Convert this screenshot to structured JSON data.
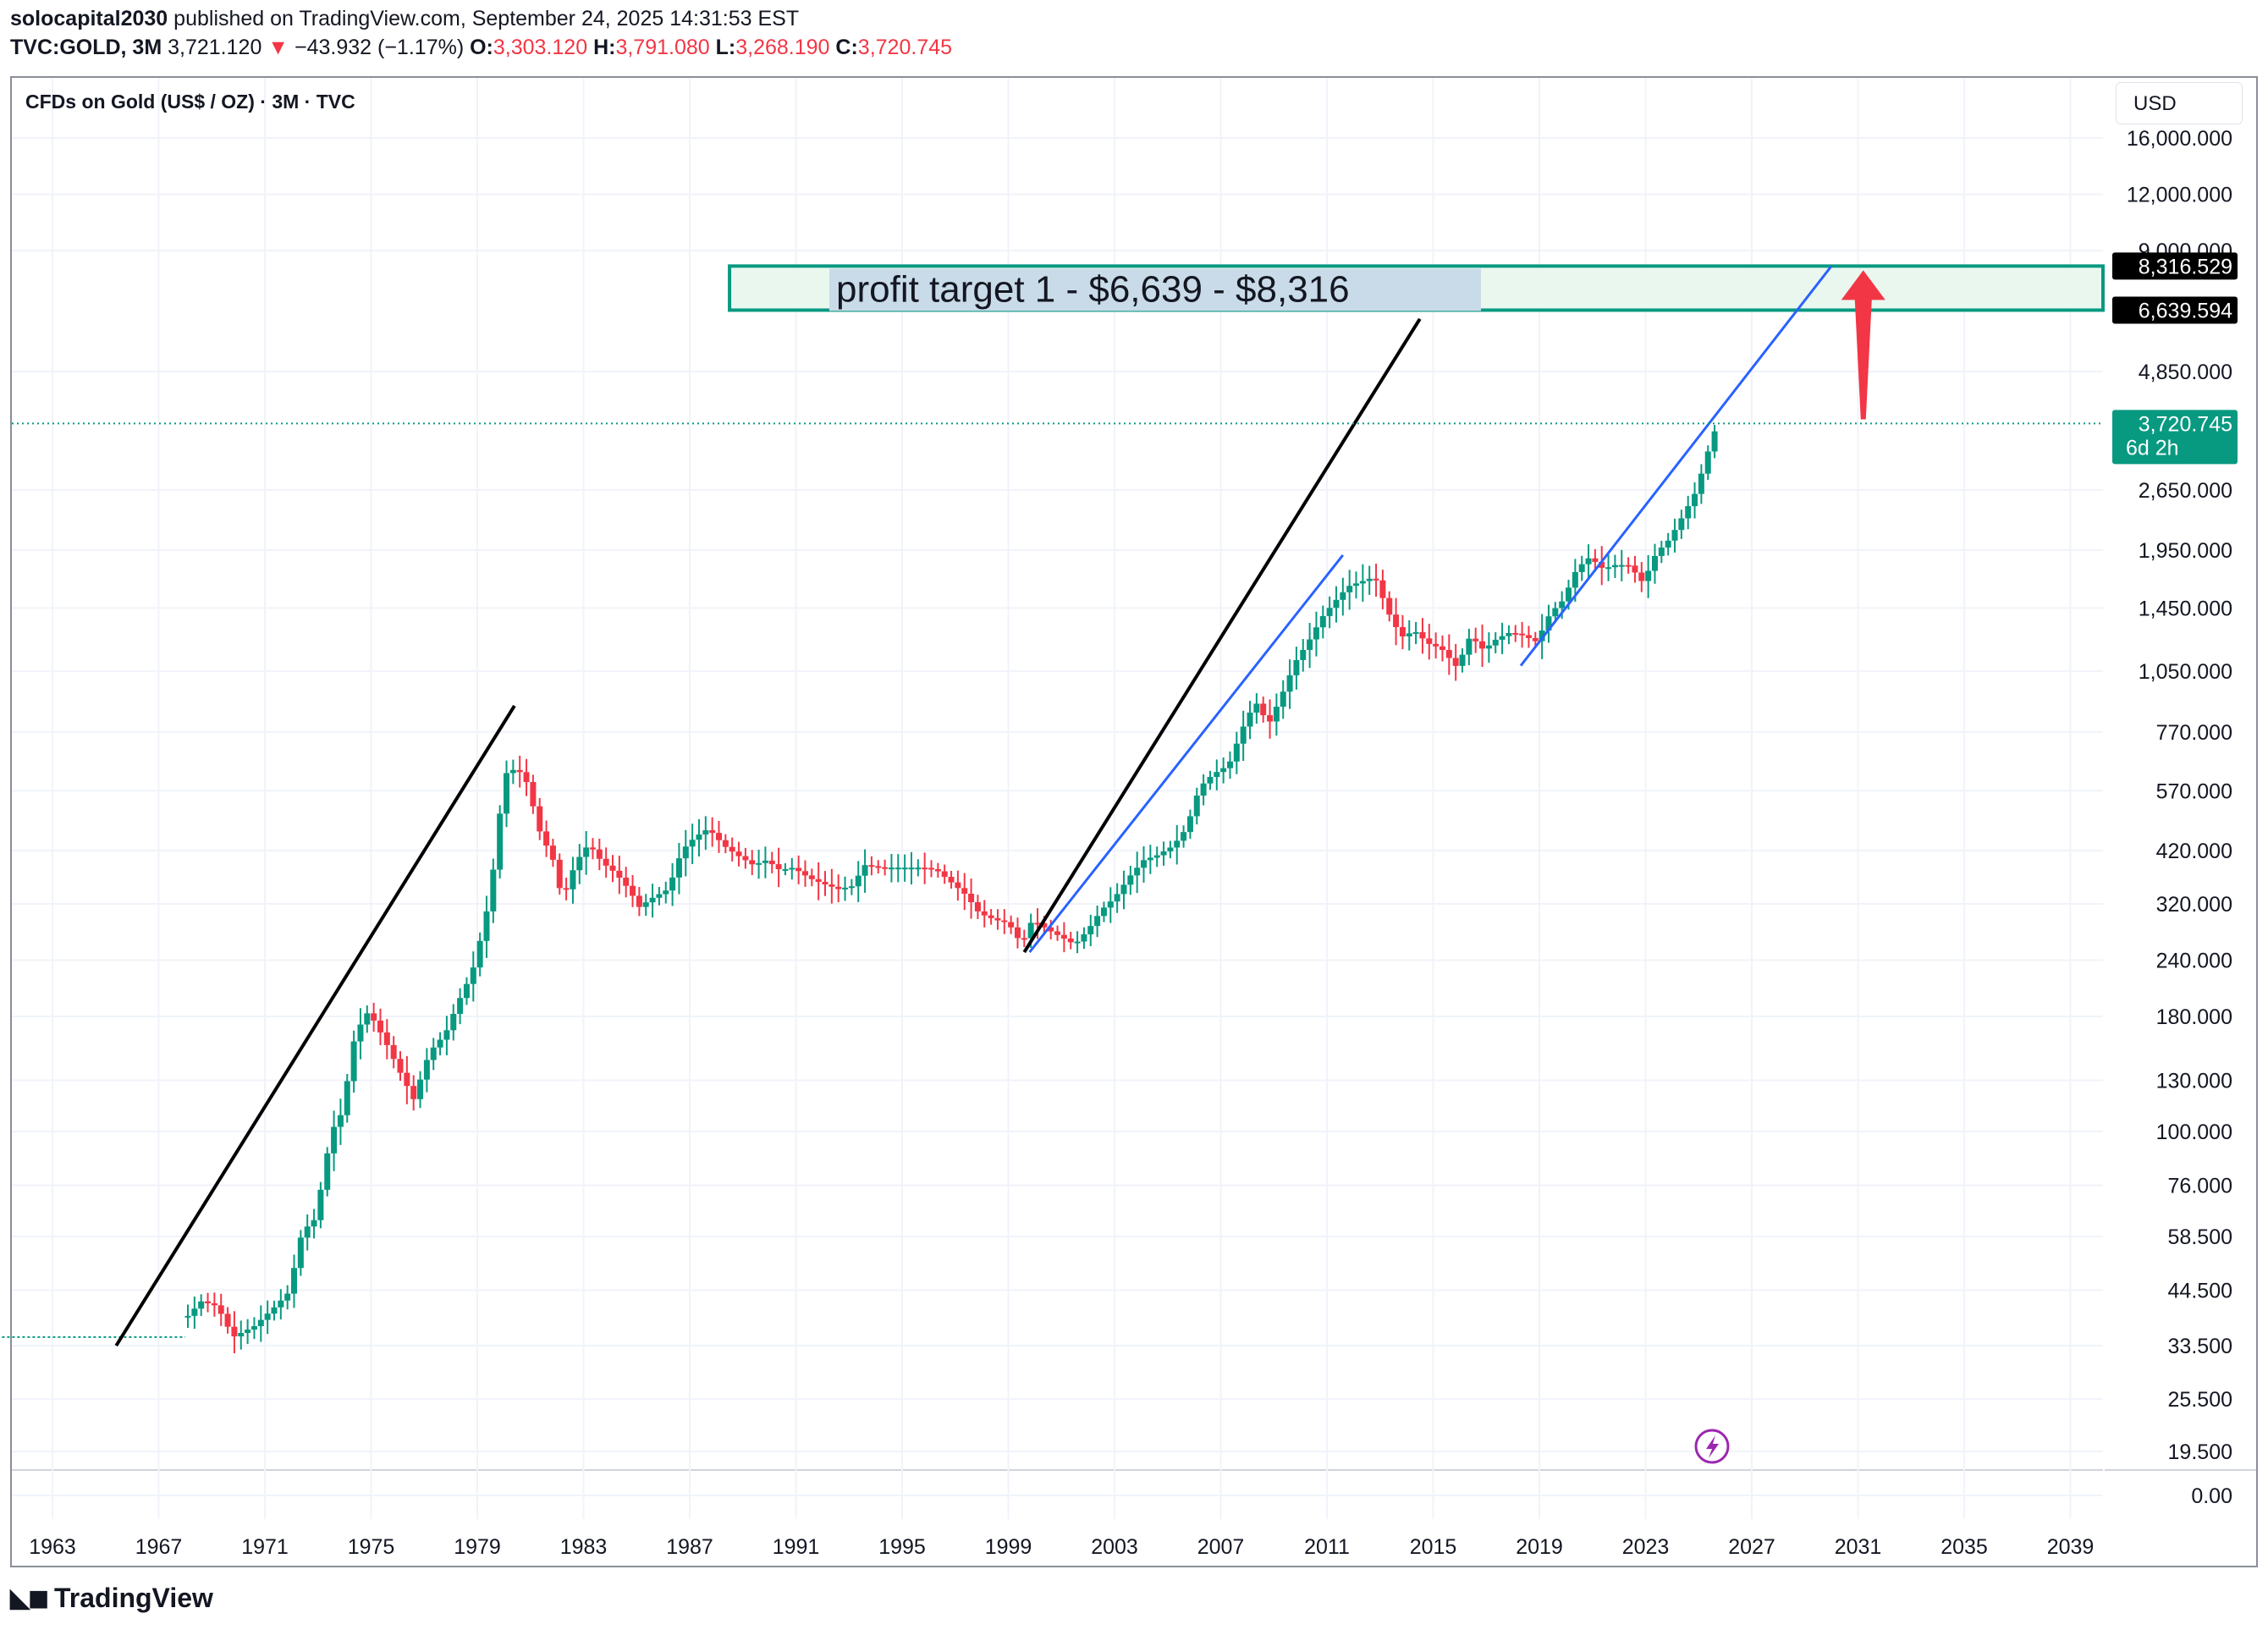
{
  "header": {
    "author": "solocapital2030",
    "published_text": "published on TradingView.com, September 24, 2025 14:31:53 EST",
    "symbol": "TVC:GOLD, 3M",
    "last": "3,721.120",
    "change": "−43.932 (−1.17%)",
    "o_label": "O:",
    "o_value": "3,303.120",
    "h_label": "H:",
    "h_value": "3,791.080",
    "l_label": "L:",
    "l_value": "3,268.190",
    "c_label": "C:",
    "c_value": "3,720.745"
  },
  "legend_title": "CFDs on Gold (US$ / OZ) · 3M · TVC",
  "currency_button": "USD",
  "brand": "TradingView",
  "colors": {
    "up": "#089981",
    "down": "#f23645",
    "trend_black": "#000000",
    "trend_blue": "#2962ff",
    "zone_border": "#089981",
    "zone_fill": "#eaf7ef",
    "arrow": "#f23645",
    "price_tag": "#089981"
  },
  "chart_data": {
    "type": "candlestick",
    "title": "CFDs on Gold (US$ / OZ) · 3M · TVC",
    "scale": "log",
    "x_ticks": [
      "1963",
      "1967",
      "1971",
      "1975",
      "1979",
      "1983",
      "1987",
      "1991",
      "1995",
      "1999",
      "2003",
      "2007",
      "2011",
      "2015",
      "2019",
      "2023",
      "2027",
      "2031",
      "2035",
      "2039"
    ],
    "y_ticks": [
      "16,000.000",
      "12,000.000",
      "9,000.000",
      "4,850.000",
      "2,650.000",
      "1,950.000",
      "1,450.000",
      "1,050.000",
      "770.000",
      "570.000",
      "420.000",
      "320.000",
      "240.000",
      "180.000",
      "130.000",
      "100.000",
      "76.000",
      "58.500",
      "44.500",
      "33.500",
      "25.500",
      "19.500",
      "0.00"
    ],
    "y_tick_values": [
      16000,
      12000,
      9000,
      4850,
      2650,
      1950,
      1450,
      1050,
      770,
      570,
      420,
      320,
      240,
      180,
      130,
      100,
      76,
      58.5,
      44.5,
      33.5,
      25.5,
      19.5,
      0
    ],
    "price_path": [
      [
        1961.0,
        35
      ],
      [
        1968.0,
        35
      ],
      [
        1968.1,
        39
      ],
      [
        1968.6,
        42
      ],
      [
        1969.2,
        41
      ],
      [
        1969.8,
        35
      ],
      [
        1970.6,
        37
      ],
      [
        1971.4,
        41
      ],
      [
        1971.9,
        44
      ],
      [
        1972.4,
        60
      ],
      [
        1972.9,
        64
      ],
      [
        1973.5,
        100
      ],
      [
        1973.9,
        110
      ],
      [
        1974.4,
        165
      ],
      [
        1974.9,
        185
      ],
      [
        1975.5,
        160
      ],
      [
        1976.1,
        135
      ],
      [
        1976.6,
        118
      ],
      [
        1977.2,
        150
      ],
      [
        1977.8,
        165
      ],
      [
        1978.3,
        195
      ],
      [
        1978.8,
        225
      ],
      [
        1979.3,
        295
      ],
      [
        1979.7,
        415
      ],
      [
        1980.0,
        620
      ],
      [
        1980.5,
        640
      ],
      [
        1980.9,
        590
      ],
      [
        1981.3,
        470
      ],
      [
        1981.9,
        395
      ],
      [
        1982.2,
        325
      ],
      [
        1982.7,
        395
      ],
      [
        1983.2,
        435
      ],
      [
        1983.7,
        395
      ],
      [
        1984.2,
        375
      ],
      [
        1984.7,
        345
      ],
      [
        1985.1,
        315
      ],
      [
        1985.6,
        330
      ],
      [
        1986.2,
        345
      ],
      [
        1986.7,
        420
      ],
      [
        1987.2,
        450
      ],
      [
        1987.7,
        470
      ],
      [
        1988.3,
        430
      ],
      [
        1988.8,
        410
      ],
      [
        1989.4,
        390
      ],
      [
        1989.9,
        400
      ],
      [
        1990.4,
        380
      ],
      [
        1990.9,
        385
      ],
      [
        1991.5,
        365
      ],
      [
        1992.0,
        355
      ],
      [
        1992.6,
        345
      ],
      [
        1993.1,
        350
      ],
      [
        1993.6,
        390
      ],
      [
        1994.2,
        385
      ],
      [
        1994.7,
        385
      ],
      [
        1995.3,
        385
      ],
      [
        1995.8,
        385
      ],
      [
        1996.3,
        380
      ],
      [
        1996.9,
        355
      ],
      [
        1997.4,
        335
      ],
      [
        1997.9,
        305
      ],
      [
        1998.5,
        295
      ],
      [
        1999.0,
        290
      ],
      [
        1999.5,
        260
      ],
      [
        1999.9,
        295
      ],
      [
        2000.5,
        280
      ],
      [
        2001.0,
        270
      ],
      [
        2001.5,
        260
      ],
      [
        2002.0,
        280
      ],
      [
        2002.5,
        310
      ],
      [
        2003.0,
        330
      ],
      [
        2003.6,
        370
      ],
      [
        2004.1,
        400
      ],
      [
        2004.6,
        410
      ],
      [
        2005.2,
        430
      ],
      [
        2005.7,
        470
      ],
      [
        2006.2,
        580
      ],
      [
        2006.7,
        620
      ],
      [
        2007.3,
        650
      ],
      [
        2007.8,
        780
      ],
      [
        2008.3,
        900
      ],
      [
        2008.8,
        800
      ],
      [
        2009.3,
        930
      ],
      [
        2009.8,
        1100
      ],
      [
        2010.3,
        1220
      ],
      [
        2010.8,
        1380
      ],
      [
        2011.3,
        1500
      ],
      [
        2011.8,
        1620
      ],
      [
        2012.3,
        1660
      ],
      [
        2012.8,
        1700
      ],
      [
        2013.3,
        1420
      ],
      [
        2013.8,
        1250
      ],
      [
        2014.3,
        1290
      ],
      [
        2014.8,
        1210
      ],
      [
        2015.3,
        1180
      ],
      [
        2015.9,
        1070
      ],
      [
        2016.4,
        1260
      ],
      [
        2016.9,
        1170
      ],
      [
        2017.4,
        1240
      ],
      [
        2017.9,
        1280
      ],
      [
        2018.4,
        1260
      ],
      [
        2018.9,
        1220
      ],
      [
        2019.4,
        1410
      ],
      [
        2019.9,
        1510
      ],
      [
        2020.4,
        1770
      ],
      [
        2020.9,
        1880
      ],
      [
        2021.4,
        1770
      ],
      [
        2021.9,
        1810
      ],
      [
        2022.4,
        1800
      ],
      [
        2022.9,
        1650
      ],
      [
        2023.4,
        1920
      ],
      [
        2023.9,
        2060
      ],
      [
        2024.4,
        2320
      ],
      [
        2024.9,
        2630
      ],
      [
        2025.4,
        3300
      ],
      [
        2025.7,
        3720
      ]
    ],
    "trendlines": [
      {
        "color": "black",
        "from": [
          1965.4,
          33.5
        ],
        "to": [
          1980.4,
          880
        ]
      },
      {
        "color": "black",
        "from": [
          1999.6,
          250
        ],
        "to": [
          2014.5,
          6350
        ]
      },
      {
        "color": "blue",
        "from": [
          1999.8,
          250
        ],
        "to": [
          2011.6,
          1900
        ]
      },
      {
        "color": "blue",
        "from": [
          2018.3,
          1080
        ],
        "to": [
          2030.0,
          8316
        ]
      }
    ],
    "zone": {
      "label": "profit target 1 - $6,639 - $8,316",
      "low": 6639.594,
      "high": 8316.529,
      "from_year": 1988.5
    },
    "price_labels": {
      "high": "8,316.529",
      "low": "6,639.594",
      "last": "3,720.745",
      "countdown": "6d 2h"
    },
    "last_price": 3720.745,
    "arrow": {
      "year": 2031.2,
      "from": 3800,
      "to": 8316
    }
  }
}
